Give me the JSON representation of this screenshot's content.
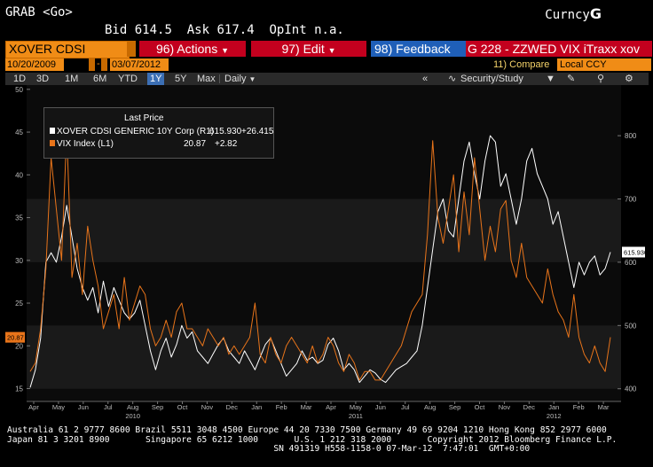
{
  "header": {
    "command": "GRAB <Go>",
    "market_prefix": "Curncy",
    "market_suffix": "G",
    "bid_label": "Bid",
    "bid": "614.5",
    "ask_label": "Ask",
    "ask": "617.4",
    "openint_label": "OpInt",
    "openint": "n.a."
  },
  "toolbar1": {
    "ticker": "XOVER CDSI GENERI",
    "actions": "96) Actions",
    "edit": "97) Edit",
    "feedback": "98) Feedback",
    "title": "G 228 - ZZWED VIX iTraxx xov"
  },
  "toolbar2": {
    "start_date": "10/20/2009",
    "end_date": "03/07/2012",
    "compare": "11) Compare",
    "currency": "Local CCY"
  },
  "toolbar3": {
    "periods": [
      "1D",
      "3D",
      "1M",
      "6M",
      "YTD",
      "1Y",
      "5Y",
      "Max"
    ],
    "selected_period": "1Y",
    "frequency": "Daily",
    "security_study": "Security/Study"
  },
  "legend": {
    "title": "Last Price",
    "rows": [
      {
        "label": "XOVER CDSI GENERIC 10Y Corp  (R1)",
        "value": "615.930",
        "change": "+26.415",
        "color": "#ffffff"
      },
      {
        "label": "VIX Index  (L1)",
        "value": "20.87",
        "change": "+2.82",
        "color": "#e8741a"
      }
    ]
  },
  "chart_data": {
    "type": "line",
    "x_labels": [
      "Apr",
      "May",
      "Jun",
      "Jul",
      "Aug",
      "Sep",
      "Oct",
      "Nov",
      "Dec",
      "Jan",
      "Feb",
      "Mar",
      "Apr",
      "May",
      "Jun",
      "Jul",
      "Aug",
      "Sep",
      "Oct",
      "Nov",
      "Dec",
      "Jan",
      "Feb",
      "Mar"
    ],
    "year_labels": [
      "2010",
      "2011",
      "2012"
    ],
    "left_axis": {
      "ticks": [
        15,
        20,
        25,
        30,
        35,
        40,
        45,
        50
      ],
      "ylim": [
        13.5,
        50.5
      ],
      "last_value_label": "20.87"
    },
    "right_axis": {
      "ticks": [
        400,
        500,
        600,
        700,
        800
      ],
      "ylim": [
        380,
        880
      ],
      "last_value_label": "615.930"
    },
    "series": [
      {
        "name": "XOVER CDSI GENERIC 10Y Corp (R1)",
        "axis": "right",
        "color": "#ffffff",
        "values": [
          402,
          430,
          480,
          600,
          615,
          600,
          640,
          690,
          640,
          590,
          560,
          540,
          560,
          520,
          570,
          530,
          560,
          540,
          520,
          510,
          520,
          540,
          500,
          460,
          430,
          460,
          480,
          450,
          470,
          500,
          480,
          490,
          460,
          450,
          440,
          455,
          470,
          480,
          460,
          450,
          440,
          460,
          445,
          430,
          450,
          470,
          480,
          460,
          440,
          420,
          430,
          440,
          460,
          445,
          450,
          440,
          445,
          470,
          480,
          460,
          430,
          440,
          430,
          410,
          420,
          430,
          425,
          415,
          410,
          420,
          430,
          435,
          440,
          450,
          460,
          500,
          560,
          620,
          680,
          700,
          650,
          640,
          700,
          760,
          790,
          740,
          700,
          760,
          800,
          790,
          720,
          740,
          700,
          660,
          700,
          760,
          780,
          740,
          720,
          700,
          660,
          680,
          640,
          600,
          560,
          600,
          580,
          600,
          610,
          580,
          590,
          616
        ]
      },
      {
        "name": "VIX Index (L1)",
        "axis": "left",
        "color": "#e8741a",
        "values": [
          17,
          18,
          22,
          29,
          42,
          36,
          30,
          45,
          28,
          32,
          26,
          34,
          30,
          27,
          22,
          24,
          26,
          22,
          28,
          23,
          25,
          27,
          26,
          22,
          20,
          21,
          23,
          21,
          24,
          25,
          22,
          22,
          21,
          20,
          22,
          21,
          20,
          21,
          19,
          20,
          19,
          20,
          21,
          25,
          19,
          18,
          21,
          19,
          18,
          20,
          21,
          20,
          19,
          18,
          20,
          18,
          19,
          21,
          20,
          18,
          17,
          19,
          18,
          16,
          17,
          17,
          16,
          16,
          17,
          18,
          19,
          20,
          22,
          24,
          25,
          26,
          33,
          44,
          35,
          32,
          36,
          40,
          31,
          38,
          33,
          42,
          36,
          30,
          34,
          31,
          36,
          37,
          30,
          28,
          32,
          28,
          27,
          26,
          25,
          29,
          26,
          24,
          23,
          21,
          26,
          21,
          19,
          18,
          20,
          18,
          17,
          21
        ]
      }
    ]
  },
  "footer": {
    "line1": "Australia 61 2 9777 8600 Brazil 5511 3048 4500 Europe 44 20 7330 7500 Germany 49 69 9204 1210 Hong Kong 852 2977 6000",
    "line2": "Japan 81 3 3201 8900       Singapore 65 6212 1000       U.S. 1 212 318 2000       Copyright 2012 Bloomberg Finance L.P.",
    "line3": "                                                    SN 491319 H558-1158-0 07-Mar-12  7:47:01  GMT+0:00"
  }
}
